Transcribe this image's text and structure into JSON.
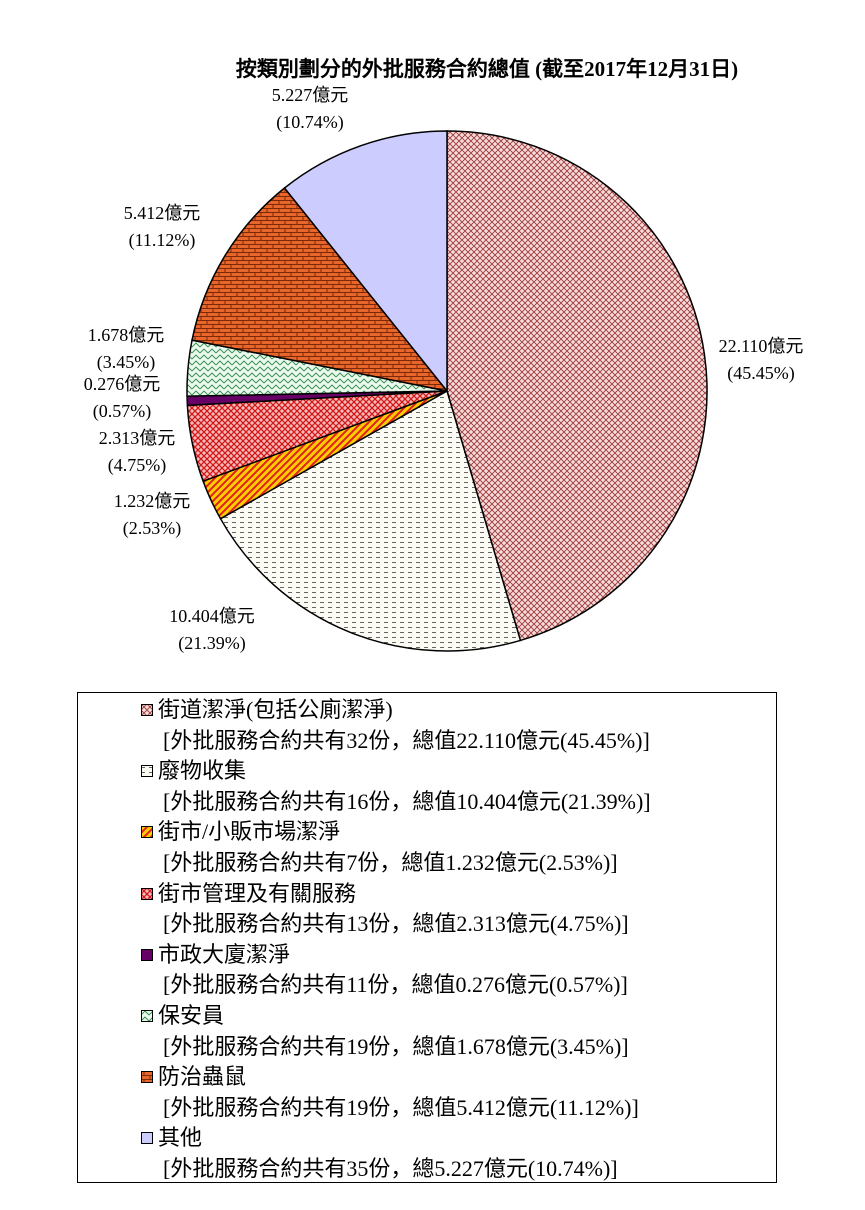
{
  "chart_data": {
    "type": "pie",
    "title": "按類別劃分的外批服務合約總值 (截至2017年12月31日)",
    "start_angle_deg": 0,
    "direction": "clockwise",
    "slices": [
      {
        "name": "街道潔淨(包括公廁潔淨)",
        "value": 22.11,
        "percent": 45.45,
        "label_line1": "22.110億元",
        "label_line2": "(45.45%)",
        "description": "[外批服務合約共有32份，總值22.110億元(45.45%)]",
        "color": "#f2c2c2",
        "pattern_color": "#9a2f2f"
      },
      {
        "name": "廢物收集",
        "value": 10.404,
        "percent": 21.39,
        "label_line1": "10.404億元",
        "label_line2": "(21.39%)",
        "description": "[外批服務合約共有16份，總值10.404億元(21.39%)]",
        "color": "#fdfcf4",
        "pattern_color": "#5c5c5c"
      },
      {
        "name": "街市/小販市場潔淨",
        "value": 1.232,
        "percent": 2.53,
        "label_line1": "1.232億元",
        "label_line2": "(2.53%)",
        "description": "[外批服務合約共有7份，總值1.232億元(2.53%)]",
        "color": "#ffcc00",
        "pattern_color": "#e02020"
      },
      {
        "name": "街市管理及有關服務",
        "value": 2.313,
        "percent": 4.75,
        "label_line1": "2.313億元",
        "label_line2": "(4.75%)",
        "description": "[外批服務合約共有13份，總值2.313億元(4.75%)]",
        "color": "#f2b0b0",
        "pattern_color": "#d01818"
      },
      {
        "name": "市政大廈潔淨",
        "value": 0.276,
        "percent": 0.57,
        "label_line1": "0.276億元",
        "label_line2": "(0.57%)",
        "description": "[外批服務合約共有11份，總值0.276億元(0.57%)]",
        "color": "#660066",
        "pattern_color": "#660066"
      },
      {
        "name": "保安員",
        "value": 1.678,
        "percent": 3.45,
        "label_line1": "1.678億元",
        "label_line2": "(3.45%)",
        "description": "[外批服務合約共有19份，總值1.678億元(3.45%)]",
        "color": "#e6f7ea",
        "pattern_color": "#2f8a4a"
      },
      {
        "name": "防治蟲鼠",
        "value": 5.412,
        "percent": 11.12,
        "label_line1": "5.412億元",
        "label_line2": "(11.12%)",
        "description": "[外批服務合約共有19份，總值5.412億元(11.12%)]",
        "color": "#e8662a",
        "pattern_color": "#7a2a0a"
      },
      {
        "name": "其他",
        "value": 5.227,
        "percent": 10.74,
        "label_line1": "5.227億元",
        "label_line2": "(10.74%)",
        "description": "[外批服務合約共有35份，總5.227億元(10.74%)]",
        "color": "#ccccff",
        "pattern_color": "#ccccff"
      }
    ],
    "legend_placement": "bottom"
  }
}
